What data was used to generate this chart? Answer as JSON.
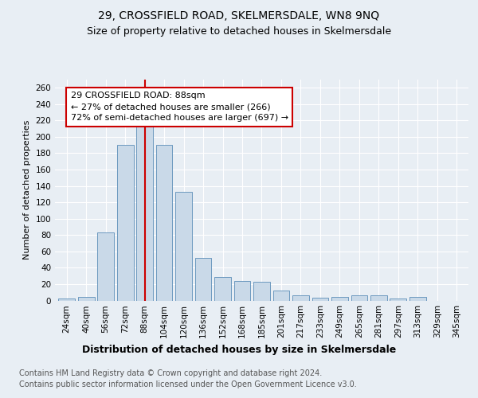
{
  "title1": "29, CROSSFIELD ROAD, SKELMERSDALE, WN8 9NQ",
  "title2": "Size of property relative to detached houses in Skelmersdale",
  "xlabel": "Distribution of detached houses by size in Skelmersdale",
  "ylabel": "Number of detached properties",
  "categories": [
    "24sqm",
    "40sqm",
    "56sqm",
    "72sqm",
    "88sqm",
    "104sqm",
    "120sqm",
    "136sqm",
    "152sqm",
    "168sqm",
    "185sqm",
    "201sqm",
    "217sqm",
    "233sqm",
    "249sqm",
    "265sqm",
    "281sqm",
    "297sqm",
    "313sqm",
    "329sqm",
    "345sqm"
  ],
  "values": [
    2,
    4,
    83,
    190,
    215,
    190,
    133,
    52,
    29,
    24,
    23,
    12,
    6,
    3,
    4,
    6,
    6,
    2,
    4,
    0,
    0
  ],
  "bar_color": "#c9d9e8",
  "bar_edge_color": "#5b8db8",
  "ref_line_x": 4,
  "ref_line_color": "#cc0000",
  "annotation_text": "29 CROSSFIELD ROAD: 88sqm\n← 27% of detached houses are smaller (266)\n72% of semi-detached houses are larger (697) →",
  "annotation_box_color": "white",
  "annotation_box_edge": "#cc0000",
  "ylim": [
    0,
    270
  ],
  "yticks": [
    0,
    20,
    40,
    60,
    80,
    100,
    120,
    140,
    160,
    180,
    200,
    220,
    240,
    260
  ],
  "footer1": "Contains HM Land Registry data © Crown copyright and database right 2024.",
  "footer2": "Contains public sector information licensed under the Open Government Licence v3.0.",
  "background_color": "#e8eef4",
  "plot_background": "#e8eef4",
  "title1_fontsize": 10,
  "title2_fontsize": 9,
  "xlabel_fontsize": 9,
  "ylabel_fontsize": 8,
  "tick_fontsize": 7.5,
  "footer_fontsize": 7,
  "annot_fontsize": 8
}
